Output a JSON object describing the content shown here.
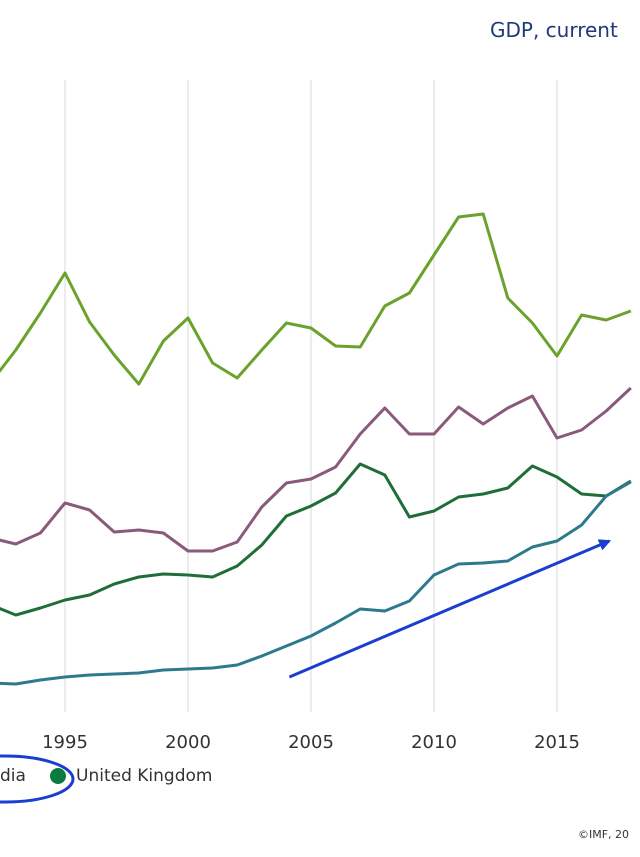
{
  "header": {
    "title": "GDP, current"
  },
  "credit": "©IMF, 20",
  "legend": {
    "items": [
      {
        "label": "dia",
        "color": "#ffffff",
        "circled": true
      },
      {
        "label": "United Kingdom",
        "color": "#0b7a3e"
      }
    ]
  },
  "chart_data": {
    "type": "line",
    "title": "GDP, current",
    "xlabel": "",
    "ylabel": "",
    "x_ticks": [
      "1995",
      "2000",
      "2005",
      "2010",
      "2015"
    ],
    "grid": "vertical",
    "series": [
      {
        "name": "",
        "color": "#6aa22c",
        "x": [
          1992,
          1993,
          1994,
          1995,
          1996,
          1997,
          1998,
          1999,
          2000,
          2001,
          2002,
          2003,
          2004,
          2005,
          2006,
          2007,
          2008,
          2009,
          2010,
          2011,
          2012,
          2013,
          2014,
          2015,
          2016,
          2017,
          2018
        ],
        "values": [
          382,
          350,
          313,
          273,
          322,
          355,
          384,
          341,
          318,
          363,
          378,
          350,
          323,
          328,
          346,
          347,
          306,
          293,
          255,
          217,
          214,
          298,
          323,
          356,
          315,
          320,
          311
        ]
      },
      {
        "name": "",
        "color": "#8a5a7a",
        "x": [
          1992,
          1993,
          1994,
          1995,
          1996,
          1997,
          1998,
          1999,
          2000,
          2001,
          2002,
          2003,
          2004,
          2005,
          2006,
          2007,
          2008,
          2009,
          2010,
          2011,
          2012,
          2013,
          2014,
          2015,
          2016,
          2017,
          2018
        ],
        "values": [
          538,
          544,
          533,
          503,
          510,
          532,
          530,
          533,
          551,
          551,
          542,
          507,
          483,
          479,
          467,
          434,
          408,
          434,
          434,
          407,
          424,
          408,
          396,
          438,
          430,
          411,
          388
        ]
      },
      {
        "name": "United Kingdom",
        "color": "#1f6e3a",
        "x": [
          1992,
          1993,
          1994,
          1995,
          1996,
          1997,
          1998,
          1999,
          2000,
          2001,
          2002,
          2003,
          2004,
          2005,
          2006,
          2007,
          2008,
          2009,
          2010,
          2011,
          2012,
          2013,
          2014,
          2015,
          2016,
          2017,
          2018
        ],
        "values": [
          605,
          615,
          608,
          600,
          595,
          584,
          577,
          574,
          575,
          577,
          566,
          545,
          516,
          506,
          493,
          464,
          475,
          517,
          511,
          497,
          494,
          488,
          466,
          477,
          494,
          496,
          481
        ]
      },
      {
        "name": "",
        "color": "#2d7a8e",
        "x": [
          1992,
          1993,
          1994,
          1995,
          1996,
          1997,
          1998,
          1999,
          2000,
          2001,
          2002,
          2003,
          2004,
          2005,
          2006,
          2007,
          2008,
          2009,
          2010,
          2011,
          2012,
          2013,
          2014,
          2015,
          2016,
          2017,
          2018
        ],
        "values": [
          683,
          684,
          680,
          677,
          675,
          674,
          673,
          670,
          669,
          668,
          665,
          656,
          646,
          636,
          623,
          609,
          611,
          601,
          575,
          564,
          563,
          561,
          547,
          541,
          525,
          496,
          482
        ]
      }
    ],
    "annotation": {
      "type": "arrow",
      "color": "#1a3fd0",
      "from_year": 2004,
      "to_year": 2017
    }
  }
}
